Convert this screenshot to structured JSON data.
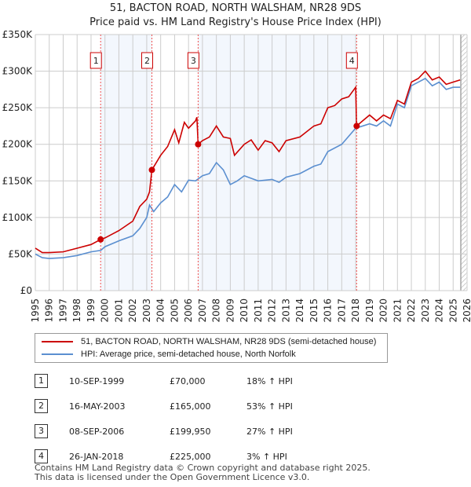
{
  "chart_data": {
    "type": "line",
    "title": "51, BACTON ROAD, NORTH WALSHAM, NR28 9DS",
    "subtitle": "Price paid vs. HM Land Registry's House Price Index (HPI)",
    "xlim": [
      1995,
      2026
    ],
    "ylim": [
      0,
      350000
    ],
    "x_ticks": [
      "1995",
      "1996",
      "1997",
      "1998",
      "1999",
      "2000",
      "2001",
      "2002",
      "2003",
      "2004",
      "2005",
      "2006",
      "2007",
      "2008",
      "2009",
      "2010",
      "2011",
      "2012",
      "2013",
      "2014",
      "2015",
      "2016",
      "2017",
      "2018",
      "2019",
      "2020",
      "2021",
      "2022",
      "2023",
      "2024",
      "2025",
      "2026"
    ],
    "y_ticks": [
      {
        "v": 0,
        "l": "£0"
      },
      {
        "v": 50000,
        "l": "£50K"
      },
      {
        "v": 100000,
        "l": "£100K"
      },
      {
        "v": 150000,
        "l": "£150K"
      },
      {
        "v": 200000,
        "l": "£200K"
      },
      {
        "v": 250000,
        "l": "£250K"
      },
      {
        "v": 300000,
        "l": "£300K"
      },
      {
        "v": 350000,
        "l": "£350K"
      }
    ],
    "series": [
      {
        "name": "51, BACTON ROAD, NORTH WALSHAM, NR28 9DS (semi-detached house)",
        "color": "#cc0000",
        "x": [
          1995,
          1995.5,
          1996,
          1997,
          1998,
          1999,
          1999.7,
          2000,
          2001,
          2002,
          2002.5,
          2003,
          2003.2,
          2003.37,
          2004,
          2004.5,
          2005,
          2005.3,
          2005.7,
          2006,
          2006.5,
          2006.6,
          2006.69,
          2007,
          2007.5,
          2008,
          2008.5,
          2009,
          2009.3,
          2010,
          2010.5,
          2011,
          2011.5,
          2012,
          2012.5,
          2013,
          2014,
          2015,
          2015.5,
          2016,
          2016.5,
          2017,
          2017.5,
          2018,
          2018.07,
          2018.5,
          2019,
          2019.5,
          2020,
          2020.5,
          2021,
          2021.5,
          2022,
          2022.5,
          2023,
          2023.5,
          2024,
          2024.5,
          2025,
          2025.5
        ],
        "y": [
          58,
          52,
          52,
          53,
          58,
          63,
          70,
          72,
          82,
          95,
          115,
          125,
          135,
          165,
          185,
          197,
          220,
          202,
          230,
          222,
          232,
          237,
          200,
          205,
          210,
          225,
          210,
          208,
          185,
          200,
          206,
          192,
          205,
          202,
          190,
          205,
          210,
          225,
          228,
          250,
          253,
          262,
          265,
          278,
          225,
          232,
          240,
          232,
          240,
          235,
          260,
          255,
          285,
          290,
          300,
          288,
          292,
          282,
          285,
          288
        ]
      },
      {
        "name": "HPI: Average price, semi-detached house, North Norfolk",
        "color": "#5b8fd0",
        "x": [
          1995,
          1995.5,
          1996,
          1997,
          1998,
          1999,
          1999.7,
          2000,
          2001,
          2002,
          2002.5,
          2003,
          2003.2,
          2003.5,
          2004,
          2004.5,
          2005,
          2005.5,
          2006,
          2006.5,
          2007,
          2007.5,
          2008,
          2008.5,
          2009,
          2009.5,
          2010,
          2011,
          2012,
          2012.5,
          2013,
          2014,
          2015,
          2015.5,
          2016,
          2017,
          2018,
          2018.5,
          2019,
          2019.5,
          2020,
          2020.5,
          2021,
          2021.5,
          2022,
          2022.5,
          2023,
          2023.5,
          2024,
          2024.5,
          2025,
          2025.5
        ],
        "y": [
          50,
          45,
          44,
          45,
          48,
          53,
          55,
          60,
          68,
          75,
          85,
          100,
          117,
          108,
          120,
          128,
          145,
          135,
          151,
          150,
          157,
          160,
          175,
          165,
          145,
          150,
          157,
          150,
          152,
          148,
          155,
          160,
          170,
          173,
          190,
          200,
          222,
          225,
          228,
          225,
          232,
          225,
          255,
          250,
          280,
          285,
          290,
          280,
          285,
          275,
          278,
          278
        ]
      }
    ],
    "sales": [
      {
        "n": "1",
        "date": "10-SEP-1999",
        "x": 1999.69,
        "price": "£70,000",
        "value": 70,
        "hpi": "18% ↑ HPI"
      },
      {
        "n": "2",
        "date": "16-MAY-2003",
        "x": 2003.37,
        "price": "£165,000",
        "value": 165,
        "hpi": "53% ↑ HPI"
      },
      {
        "n": "3",
        "date": "08-SEP-2006",
        "x": 2006.69,
        "price": "£199,950",
        "value": 199.95,
        "hpi": "27% ↑ HPI"
      },
      {
        "n": "4",
        "date": "26-JAN-2018",
        "x": 2018.07,
        "price": "£225,000",
        "value": 225,
        "hpi": "3% ↑ HPI"
      }
    ]
  },
  "legend": {
    "property": "51, BACTON ROAD, NORTH WALSHAM, NR28 9DS (semi-detached house)",
    "hpi": "HPI: Average price, semi-detached house, North Norfolk"
  },
  "footer": {
    "line1": "Contains HM Land Registry data © Crown copyright and database right 2025.",
    "line2": "This data is licensed under the Open Government Licence v3.0."
  }
}
